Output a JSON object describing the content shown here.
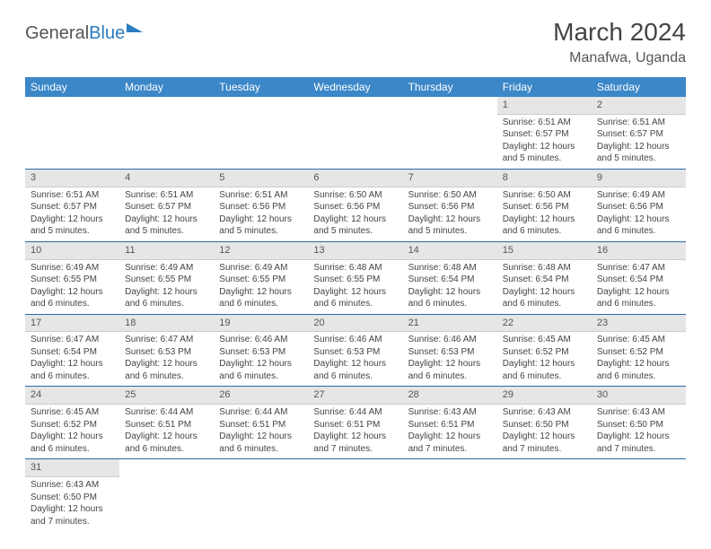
{
  "logo": {
    "part1": "General",
    "part2": "Blue"
  },
  "title": "March 2024",
  "location": "Manafwa, Uganda",
  "colors": {
    "header_bg": "#3b87c8",
    "header_text": "#ffffff",
    "row_divider": "#2a6aa8",
    "daynum_bg": "#e6e6e6",
    "daynum_border": "#cccccc",
    "body_text": "#444444",
    "logo_accent": "#2a7bbf"
  },
  "typography": {
    "title_fontsize": 28,
    "location_fontsize": 16,
    "header_fontsize": 12,
    "cell_fontsize": 10
  },
  "weekdays": [
    "Sunday",
    "Monday",
    "Tuesday",
    "Wednesday",
    "Thursday",
    "Friday",
    "Saturday"
  ],
  "weeks": [
    [
      {
        "empty": true
      },
      {
        "empty": true
      },
      {
        "empty": true
      },
      {
        "empty": true
      },
      {
        "empty": true
      },
      {
        "day": "1",
        "sunrise": "Sunrise: 6:51 AM",
        "sunset": "Sunset: 6:57 PM",
        "daylight": "Daylight: 12 hours and 5 minutes."
      },
      {
        "day": "2",
        "sunrise": "Sunrise: 6:51 AM",
        "sunset": "Sunset: 6:57 PM",
        "daylight": "Daylight: 12 hours and 5 minutes."
      }
    ],
    [
      {
        "day": "3",
        "sunrise": "Sunrise: 6:51 AM",
        "sunset": "Sunset: 6:57 PM",
        "daylight": "Daylight: 12 hours and 5 minutes."
      },
      {
        "day": "4",
        "sunrise": "Sunrise: 6:51 AM",
        "sunset": "Sunset: 6:57 PM",
        "daylight": "Daylight: 12 hours and 5 minutes."
      },
      {
        "day": "5",
        "sunrise": "Sunrise: 6:51 AM",
        "sunset": "Sunset: 6:56 PM",
        "daylight": "Daylight: 12 hours and 5 minutes."
      },
      {
        "day": "6",
        "sunrise": "Sunrise: 6:50 AM",
        "sunset": "Sunset: 6:56 PM",
        "daylight": "Daylight: 12 hours and 5 minutes."
      },
      {
        "day": "7",
        "sunrise": "Sunrise: 6:50 AM",
        "sunset": "Sunset: 6:56 PM",
        "daylight": "Daylight: 12 hours and 5 minutes."
      },
      {
        "day": "8",
        "sunrise": "Sunrise: 6:50 AM",
        "sunset": "Sunset: 6:56 PM",
        "daylight": "Daylight: 12 hours and 6 minutes."
      },
      {
        "day": "9",
        "sunrise": "Sunrise: 6:49 AM",
        "sunset": "Sunset: 6:56 PM",
        "daylight": "Daylight: 12 hours and 6 minutes."
      }
    ],
    [
      {
        "day": "10",
        "sunrise": "Sunrise: 6:49 AM",
        "sunset": "Sunset: 6:55 PM",
        "daylight": "Daylight: 12 hours and 6 minutes."
      },
      {
        "day": "11",
        "sunrise": "Sunrise: 6:49 AM",
        "sunset": "Sunset: 6:55 PM",
        "daylight": "Daylight: 12 hours and 6 minutes."
      },
      {
        "day": "12",
        "sunrise": "Sunrise: 6:49 AM",
        "sunset": "Sunset: 6:55 PM",
        "daylight": "Daylight: 12 hours and 6 minutes."
      },
      {
        "day": "13",
        "sunrise": "Sunrise: 6:48 AM",
        "sunset": "Sunset: 6:55 PM",
        "daylight": "Daylight: 12 hours and 6 minutes."
      },
      {
        "day": "14",
        "sunrise": "Sunrise: 6:48 AM",
        "sunset": "Sunset: 6:54 PM",
        "daylight": "Daylight: 12 hours and 6 minutes."
      },
      {
        "day": "15",
        "sunrise": "Sunrise: 6:48 AM",
        "sunset": "Sunset: 6:54 PM",
        "daylight": "Daylight: 12 hours and 6 minutes."
      },
      {
        "day": "16",
        "sunrise": "Sunrise: 6:47 AM",
        "sunset": "Sunset: 6:54 PM",
        "daylight": "Daylight: 12 hours and 6 minutes."
      }
    ],
    [
      {
        "day": "17",
        "sunrise": "Sunrise: 6:47 AM",
        "sunset": "Sunset: 6:54 PM",
        "daylight": "Daylight: 12 hours and 6 minutes."
      },
      {
        "day": "18",
        "sunrise": "Sunrise: 6:47 AM",
        "sunset": "Sunset: 6:53 PM",
        "daylight": "Daylight: 12 hours and 6 minutes."
      },
      {
        "day": "19",
        "sunrise": "Sunrise: 6:46 AM",
        "sunset": "Sunset: 6:53 PM",
        "daylight": "Daylight: 12 hours and 6 minutes."
      },
      {
        "day": "20",
        "sunrise": "Sunrise: 6:46 AM",
        "sunset": "Sunset: 6:53 PM",
        "daylight": "Daylight: 12 hours and 6 minutes."
      },
      {
        "day": "21",
        "sunrise": "Sunrise: 6:46 AM",
        "sunset": "Sunset: 6:53 PM",
        "daylight": "Daylight: 12 hours and 6 minutes."
      },
      {
        "day": "22",
        "sunrise": "Sunrise: 6:45 AM",
        "sunset": "Sunset: 6:52 PM",
        "daylight": "Daylight: 12 hours and 6 minutes."
      },
      {
        "day": "23",
        "sunrise": "Sunrise: 6:45 AM",
        "sunset": "Sunset: 6:52 PM",
        "daylight": "Daylight: 12 hours and 6 minutes."
      }
    ],
    [
      {
        "day": "24",
        "sunrise": "Sunrise: 6:45 AM",
        "sunset": "Sunset: 6:52 PM",
        "daylight": "Daylight: 12 hours and 6 minutes."
      },
      {
        "day": "25",
        "sunrise": "Sunrise: 6:44 AM",
        "sunset": "Sunset: 6:51 PM",
        "daylight": "Daylight: 12 hours and 6 minutes."
      },
      {
        "day": "26",
        "sunrise": "Sunrise: 6:44 AM",
        "sunset": "Sunset: 6:51 PM",
        "daylight": "Daylight: 12 hours and 6 minutes."
      },
      {
        "day": "27",
        "sunrise": "Sunrise: 6:44 AM",
        "sunset": "Sunset: 6:51 PM",
        "daylight": "Daylight: 12 hours and 7 minutes."
      },
      {
        "day": "28",
        "sunrise": "Sunrise: 6:43 AM",
        "sunset": "Sunset: 6:51 PM",
        "daylight": "Daylight: 12 hours and 7 minutes."
      },
      {
        "day": "29",
        "sunrise": "Sunrise: 6:43 AM",
        "sunset": "Sunset: 6:50 PM",
        "daylight": "Daylight: 12 hours and 7 minutes."
      },
      {
        "day": "30",
        "sunrise": "Sunrise: 6:43 AM",
        "sunset": "Sunset: 6:50 PM",
        "daylight": "Daylight: 12 hours and 7 minutes."
      }
    ],
    [
      {
        "day": "31",
        "sunrise": "Sunrise: 6:43 AM",
        "sunset": "Sunset: 6:50 PM",
        "daylight": "Daylight: 12 hours and 7 minutes."
      },
      {
        "empty": true
      },
      {
        "empty": true
      },
      {
        "empty": true
      },
      {
        "empty": true
      },
      {
        "empty": true
      },
      {
        "empty": true
      }
    ]
  ]
}
